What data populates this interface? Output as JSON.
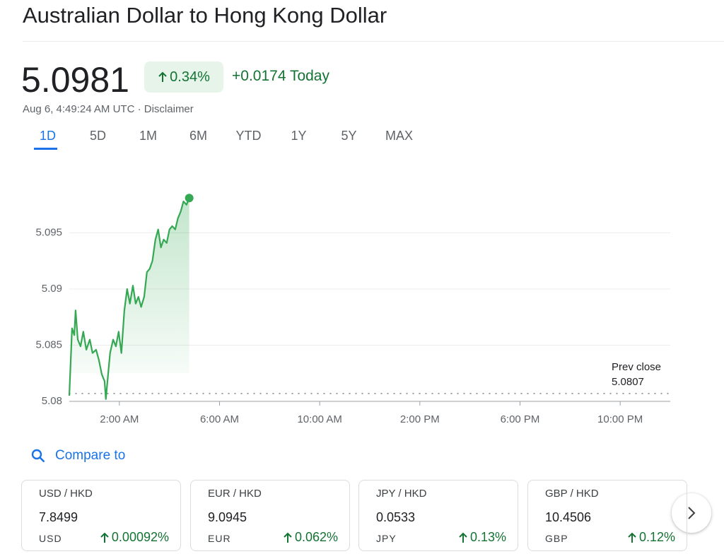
{
  "header": {
    "title": "Australian Dollar to Hong Kong Dollar"
  },
  "quote": {
    "price": "5.0981",
    "change_percent": "0.34%",
    "change": "+0.0174 Today",
    "timestamp": "Aug 6, 4:49:24 AM UTC",
    "separator": "·",
    "disclaimer": "Disclaimer"
  },
  "tabs": [
    "1D",
    "5D",
    "1M",
    "6M",
    "YTD",
    "1Y",
    "5Y",
    "MAX"
  ],
  "active_tab": 0,
  "chart_data": {
    "type": "line",
    "color": "#34a853",
    "x": [
      0,
      0.11,
      0.2,
      0.25,
      0.34,
      0.45,
      0.56,
      0.68,
      0.82,
      0.93,
      1.07,
      1.18,
      1.3,
      1.41,
      1.46,
      1.55,
      1.63,
      1.75,
      1.86,
      1.97,
      2.08,
      2.2,
      2.31,
      2.42,
      2.54,
      2.65,
      2.76,
      2.87,
      2.99,
      3.1,
      3.21,
      3.32,
      3.44,
      3.55,
      3.66,
      3.77,
      3.89,
      4.0,
      4.11,
      4.23,
      4.34,
      4.45,
      4.56,
      4.68,
      4.79
    ],
    "values": [
      5.0805,
      5.0865,
      5.0859,
      5.0881,
      5.0855,
      5.0849,
      5.0862,
      5.0846,
      5.0855,
      5.0843,
      5.0846,
      5.0837,
      5.0824,
      5.0818,
      5.0802,
      5.0824,
      5.0843,
      5.0855,
      5.0849,
      5.0862,
      5.0843,
      5.0881,
      5.09,
      5.0887,
      5.0903,
      5.0887,
      5.0893,
      5.0884,
      5.0893,
      5.0915,
      5.0918,
      5.0925,
      5.0944,
      5.0953,
      5.0937,
      5.0944,
      5.0941,
      5.0953,
      5.0956,
      5.0953,
      5.0963,
      5.0969,
      5.0978,
      5.0975,
      5.0981
    ],
    "xlim": [
      0,
      24
    ],
    "xticks": [
      {
        "value": 2,
        "label": "2:00 AM"
      },
      {
        "value": 6,
        "label": "6:00 AM"
      },
      {
        "value": 10,
        "label": "10:00 AM"
      },
      {
        "value": 14,
        "label": "2:00 PM"
      },
      {
        "value": 18,
        "label": "6:00 PM"
      },
      {
        "value": 22,
        "label": "10:00 PM"
      }
    ],
    "ylim": [
      5.08,
      5.1
    ],
    "yticks": [
      5.08,
      5.085,
      5.09,
      5.095
    ],
    "grid": true,
    "prev_close": {
      "label": "Prev close",
      "value": 5.0807
    }
  },
  "compare": {
    "label": "Compare to",
    "cards": [
      {
        "pair": "USD / HKD",
        "price": "7.8499",
        "currency": "USD",
        "change": "0.00092%"
      },
      {
        "pair": "EUR / HKD",
        "price": "9.0945",
        "currency": "EUR",
        "change": "0.062%"
      },
      {
        "pair": "JPY / HKD",
        "price": "0.0533",
        "currency": "JPY",
        "change": "0.13%"
      },
      {
        "pair": "GBP / HKD",
        "price": "10.4506",
        "currency": "GBP",
        "change": "0.12%"
      }
    ]
  }
}
